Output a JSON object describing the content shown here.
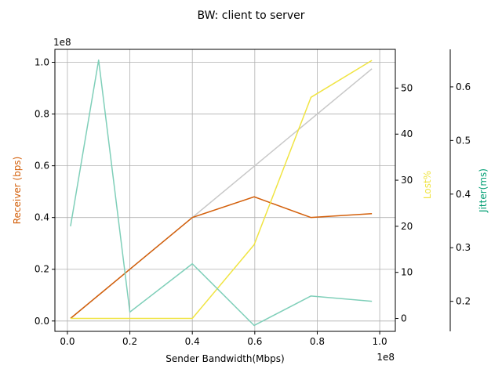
{
  "chart_data": {
    "type": "line",
    "title": "BW: client to server",
    "xlabel": "Sender Bandwidth(Mbps)",
    "x_offset_label": "1e8",
    "xlim": [
      -4000000,
      105000000
    ],
    "xticks": [
      "0.0",
      "0.2",
      "0.4",
      "0.6",
      "0.8",
      "1.0"
    ],
    "xtick_values": [
      0,
      20000000,
      40000000,
      60000000,
      80000000,
      100000000
    ],
    "grid": true,
    "x": [
      1000000,
      10000000,
      20000000,
      40000000,
      59800000,
      78000000,
      97500000
    ],
    "axes": [
      {
        "id": "left",
        "label": "Receiver (bps)",
        "color": "#d35f0a",
        "offset_label": "1e8",
        "ylim": [
          -4000000,
          105000000
        ],
        "ticks": [
          "0.0",
          "0.2",
          "0.4",
          "0.6",
          "0.8",
          "1.0"
        ],
        "tick_values": [
          0,
          20000000,
          40000000,
          60000000,
          80000000,
          100000000
        ]
      },
      {
        "id": "right",
        "label": "Lost%",
        "color": "#f0e442",
        "ylim": [
          -2.8,
          58.4
        ],
        "ticks": [
          "0",
          "10",
          "20",
          "30",
          "40",
          "50"
        ],
        "tick_values": [
          0,
          10,
          20,
          30,
          40,
          50
        ]
      },
      {
        "id": "right2",
        "label": "Jitter(ms)",
        "color": "#009e73",
        "ylim": [
          0.144,
          0.67
        ],
        "ticks": [
          "0.2",
          "0.3",
          "0.4",
          "0.5",
          "0.6"
        ],
        "tick_values": [
          0.2,
          0.3,
          0.4,
          0.5,
          0.6
        ]
      }
    ],
    "series": [
      {
        "axis": "left",
        "color": "#c8c8c8",
        "x": [
          1000000,
          40000000,
          97500000
        ],
        "values": [
          1000000,
          40000000,
          97500000
        ]
      },
      {
        "name": "Receiver (bps)",
        "axis": "left",
        "color": "#d35f0a",
        "values": [
          1000000,
          10000000,
          20000000,
          40000000,
          48000000,
          40000000,
          41500000
        ]
      },
      {
        "name": "Lost%",
        "axis": "right",
        "color": "#f0e442",
        "values": [
          0,
          0,
          0,
          0,
          16,
          48,
          56
        ]
      },
      {
        "name": "Jitter(ms)",
        "axis": "right2",
        "color": "#7fcfb9",
        "values": [
          0.34,
          0.65,
          0.18,
          0.27,
          0.155,
          0.21,
          0.2
        ]
      }
    ]
  }
}
